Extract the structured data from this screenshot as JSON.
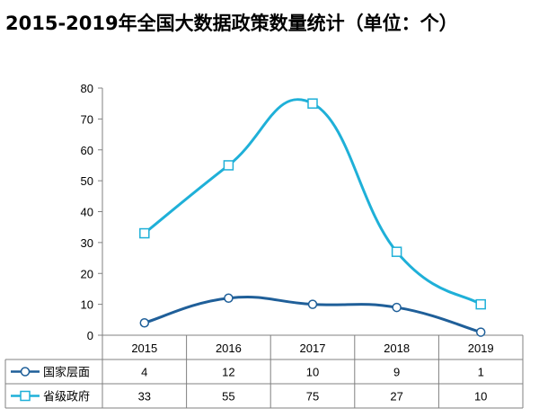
{
  "title": "2015-2019年全国大数据政策数量统计（单位：个）",
  "colors": {
    "series1": "#1f5f99",
    "series2": "#1fb0d8",
    "grid": "#808080"
  },
  "chart_data": {
    "type": "line",
    "title": "2015-2019年全国大数据政策数量统计（单位：个）",
    "categories": [
      "2015",
      "2016",
      "2017",
      "2018",
      "2019"
    ],
    "ylim": [
      0,
      80
    ],
    "yticks": [
      0,
      10,
      20,
      30,
      40,
      50,
      60,
      70,
      80
    ],
    "grid": false,
    "smooth": true,
    "legend_placement": "data-table-rows",
    "series": [
      {
        "name": "国家层面",
        "values": [
          4,
          12,
          10,
          9,
          1
        ],
        "marker": "circle",
        "color": "#1f5f99"
      },
      {
        "name": "省级政府",
        "values": [
          33,
          55,
          75,
          27,
          10
        ],
        "marker": "square",
        "color": "#1fb0d8"
      }
    ]
  }
}
